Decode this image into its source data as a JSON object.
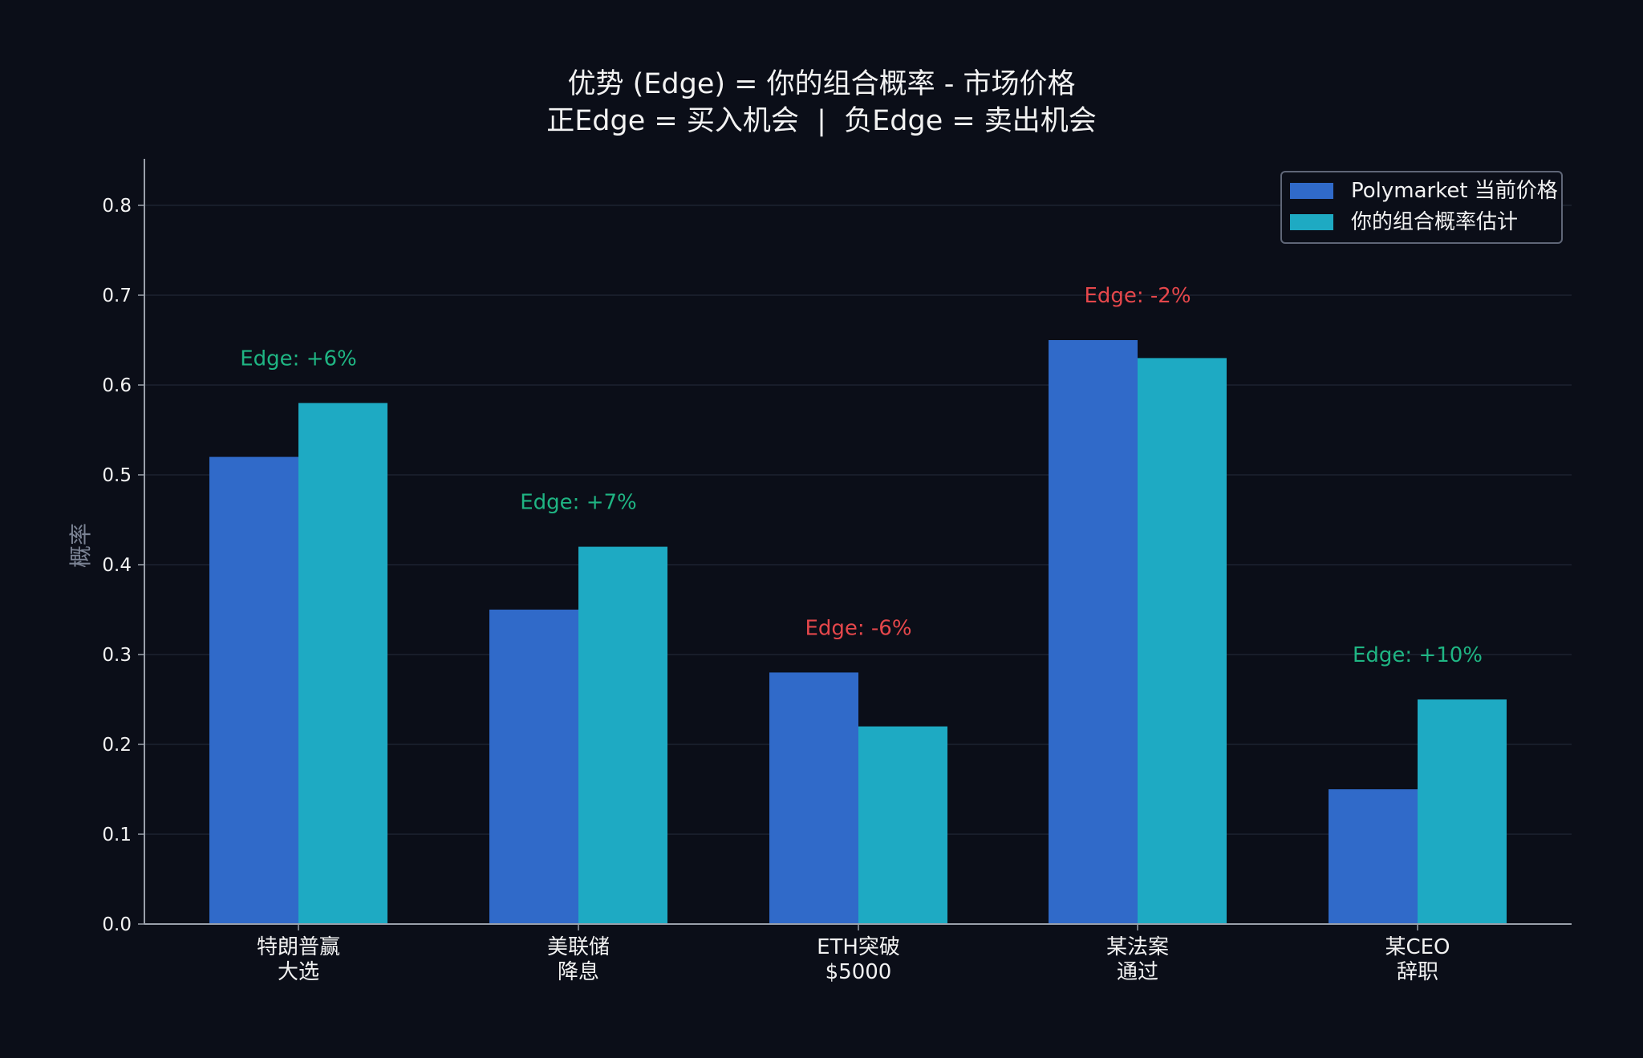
{
  "chart_data": {
    "type": "bar",
    "title_lines": [
      "优势 (Edge) = 你的组合概率 - 市场价格",
      "正Edge = 买入机会  |  负Edge = 卖出机会"
    ],
    "ylabel": "概率",
    "xlabel": "",
    "ylim": [
      0,
      0.85
    ],
    "yticks": [
      0.0,
      0.1,
      0.2,
      0.3,
      0.4,
      0.5,
      0.6,
      0.7,
      0.8
    ],
    "ytick_labels": [
      "0.0",
      "0.1",
      "0.2",
      "0.3",
      "0.4",
      "0.5",
      "0.6",
      "0.7",
      "0.8"
    ],
    "grid": true,
    "legend_position": "top-right",
    "categories": [
      [
        "特朗普赢",
        "大选"
      ],
      [
        "美联储",
        "降息"
      ],
      [
        "ETH突破",
        "$5000"
      ],
      [
        "某法案",
        "通过"
      ],
      [
        "某CEO",
        "辞职"
      ]
    ],
    "series": [
      {
        "name": "Polymarket 当前价格",
        "color": "#306ac9",
        "values": [
          0.52,
          0.35,
          0.28,
          0.65,
          0.15
        ]
      },
      {
        "name": "你的组合概率估计",
        "color": "#1eaac3",
        "values": [
          0.58,
          0.42,
          0.22,
          0.63,
          0.25
        ]
      }
    ],
    "annotations": [
      "Edge: +6%",
      "Edge: +7%",
      "Edge: -6%",
      "Edge: -2%",
      "Edge: +10%"
    ],
    "annotation_colors": {
      "positive": "#1fb583",
      "negative": "#e5474b"
    }
  }
}
